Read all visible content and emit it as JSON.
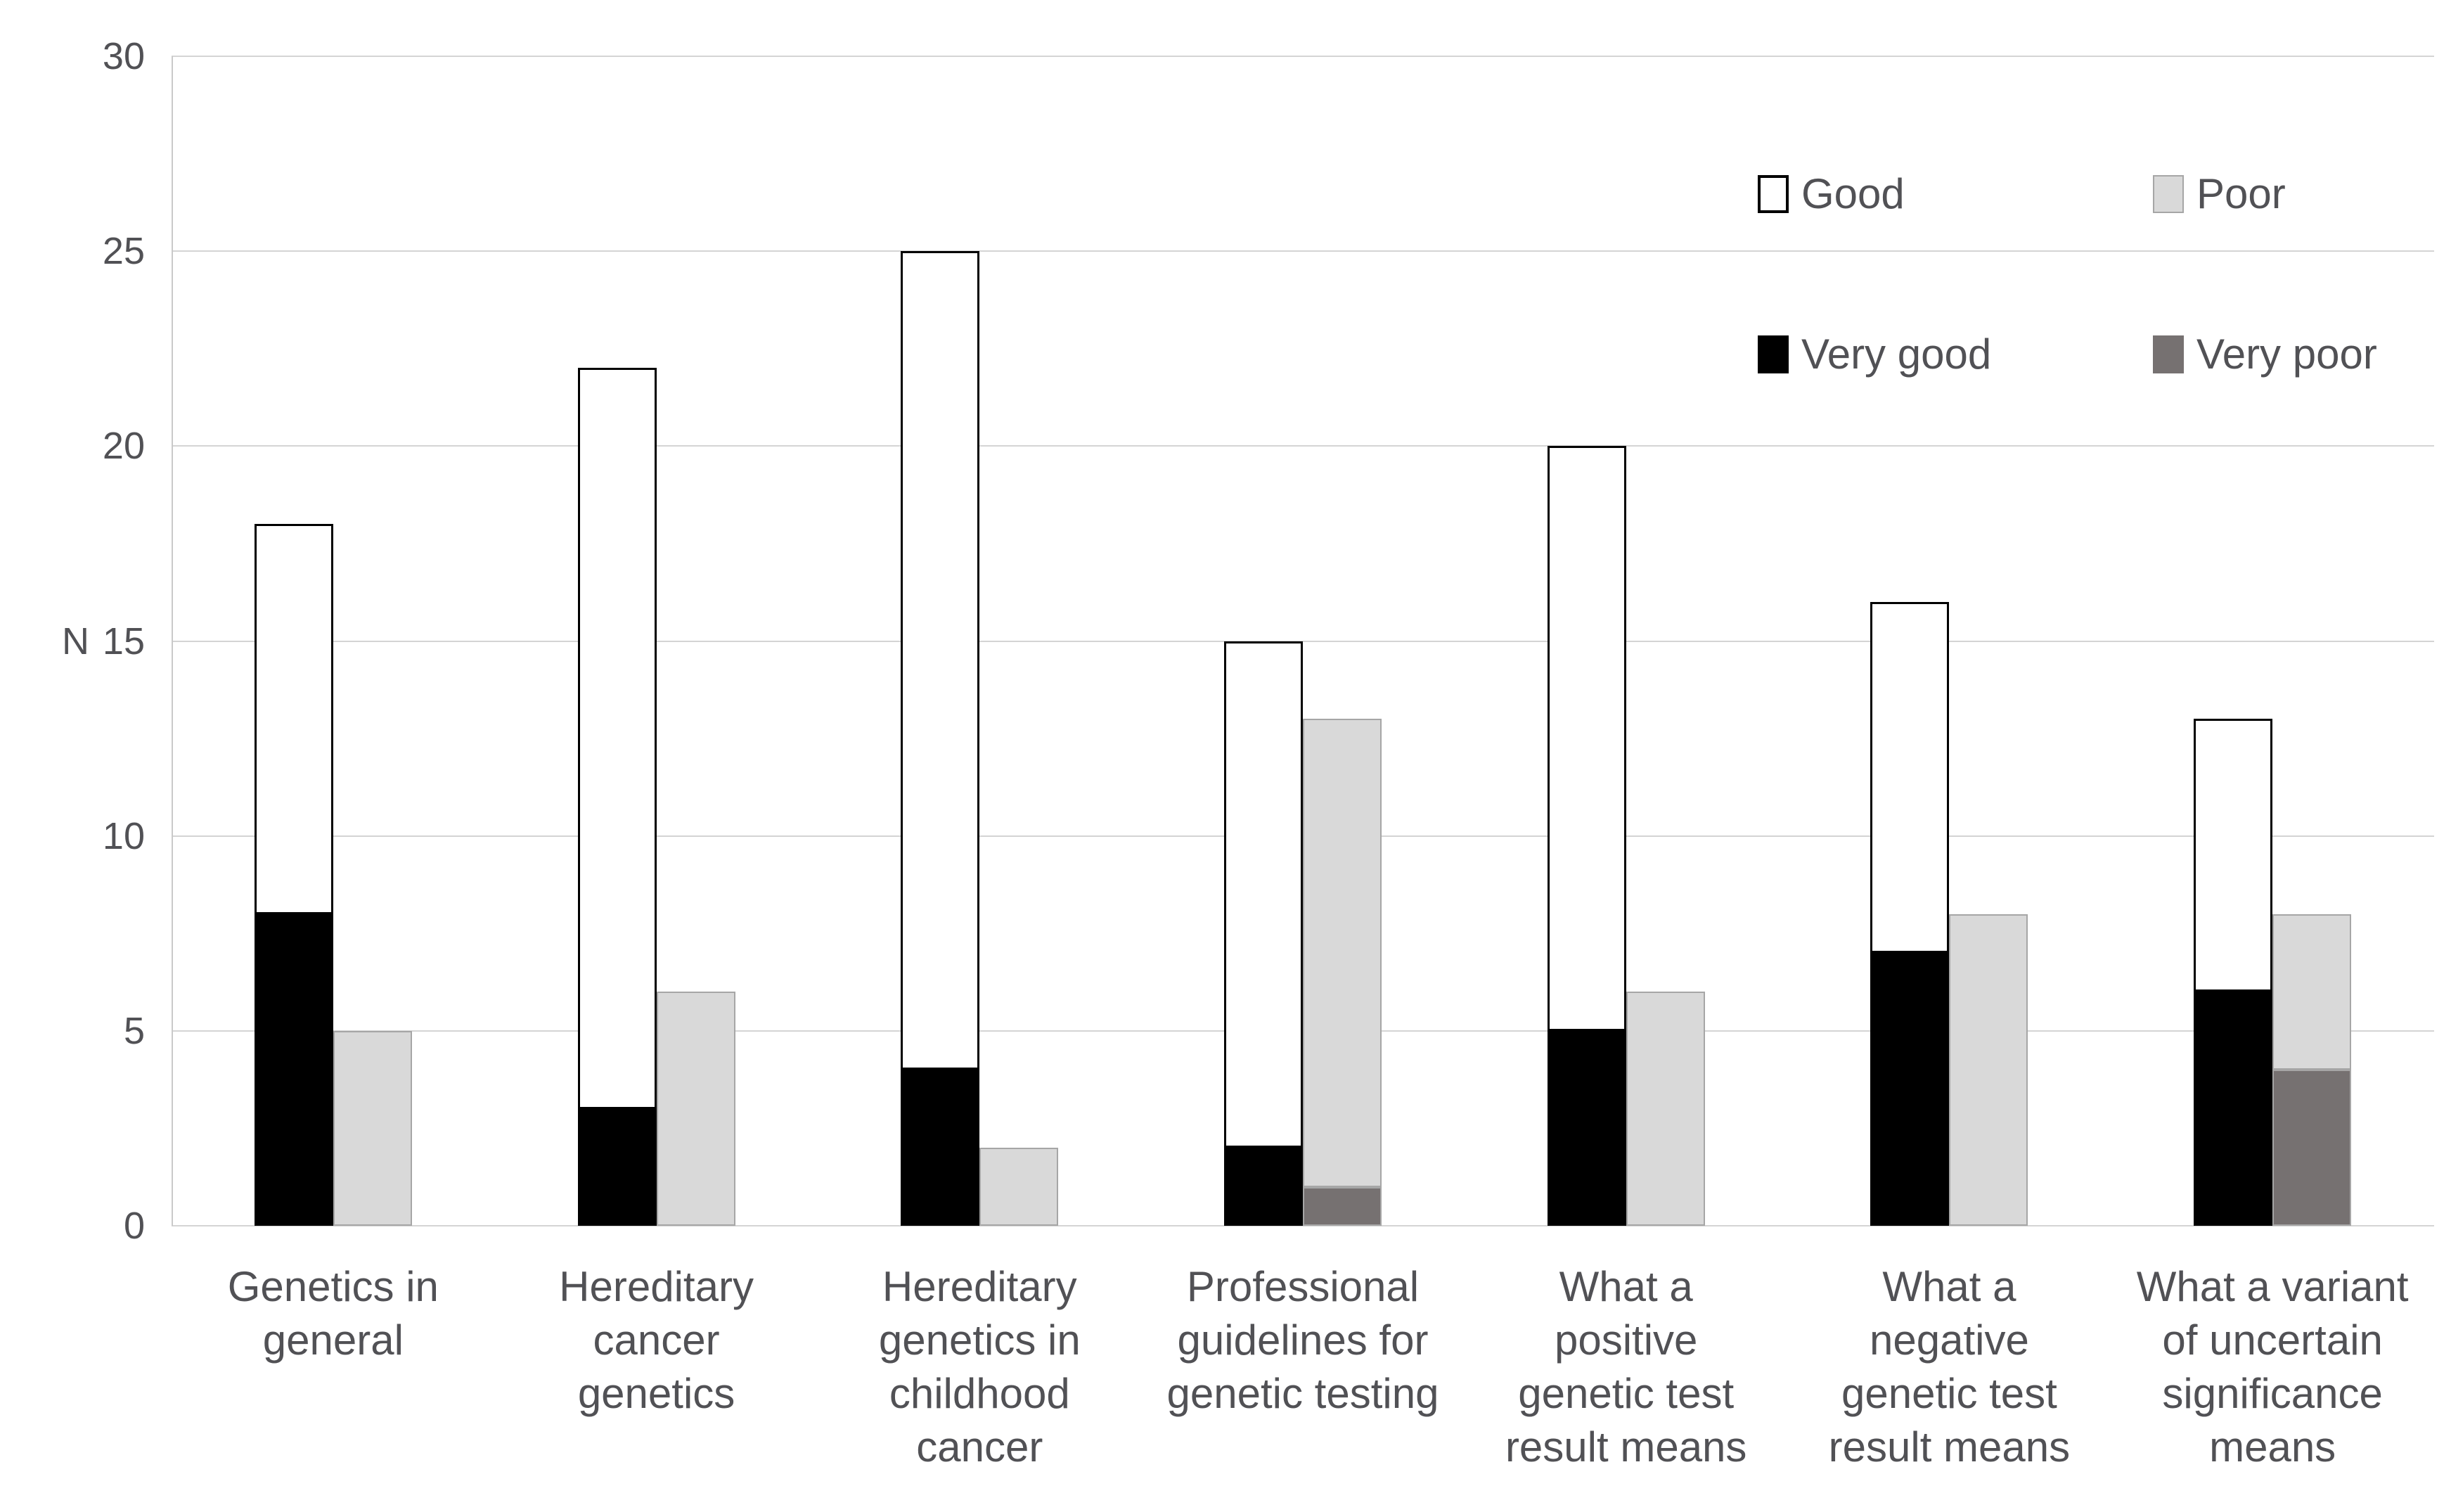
{
  "chart_data": {
    "type": "bar",
    "variant": "clustered-stacked-columns",
    "title": "",
    "xlabel": "",
    "ylabel": "N",
    "ylim": [
      0,
      30
    ],
    "yticks": [
      0,
      5,
      10,
      15,
      20,
      25,
      30
    ],
    "grid": true,
    "legend_position": "top-right",
    "categories": [
      {
        "label": "Genetics in general",
        "lines": [
          "Genetics in",
          "general"
        ]
      },
      {
        "label": "Hereditary cancer genetics",
        "lines": [
          "Hereditary",
          "cancer",
          "genetics"
        ]
      },
      {
        "label": "Hereditary genetics in childhood cancer",
        "lines": [
          "Hereditary",
          "genetics in",
          "childhood",
          "cancer"
        ]
      },
      {
        "label": "Professional guidelines for genetic testing",
        "lines": [
          "Professional",
          "guidelines for",
          "genetic testing"
        ]
      },
      {
        "label": "What a positive genetic test result means",
        "lines": [
          "What a",
          "positive",
          "genetic test",
          "result means"
        ]
      },
      {
        "label": "What a negative genetic test result means",
        "lines": [
          "What a",
          "negative",
          "genetic test",
          "result means"
        ]
      },
      {
        "label": "What a variant of uncertain significance means",
        "lines": [
          "What a variant",
          "of uncertain",
          "significance",
          "means"
        ]
      }
    ],
    "series": [
      {
        "key": "very_good",
        "name": "Very good",
        "stack": "good-bar",
        "order": 0,
        "values": [
          8,
          3,
          4,
          2,
          5,
          7,
          6
        ],
        "fill": "#000000",
        "border": "#000000"
      },
      {
        "key": "good",
        "name": "Good",
        "stack": "good-bar",
        "order": 1,
        "values": [
          10,
          19,
          21,
          13,
          15,
          9,
          7
        ],
        "fill": "#ffffff",
        "border": "#000000"
      },
      {
        "key": "very_poor",
        "name": "Very poor",
        "stack": "poor-bar",
        "order": 0,
        "values": [
          0,
          0,
          0,
          1,
          0,
          0,
          4
        ],
        "fill": "#767171",
        "border": "#a6a6a6"
      },
      {
        "key": "poor",
        "name": "Poor",
        "stack": "poor-bar",
        "order": 1,
        "values": [
          5,
          6,
          2,
          12,
          6,
          8,
          4
        ],
        "fill": "#d9d9d9",
        "border": "#a6a6a6"
      }
    ],
    "stack_totals": {
      "good-bar": [
        18,
        22,
        25,
        15,
        20,
        16,
        13
      ],
      "poor-bar": [
        5,
        6,
        2,
        13,
        6,
        8,
        8
      ]
    },
    "legend_entries": [
      {
        "key": "good",
        "label": "Good",
        "row": 0,
        "col": 0
      },
      {
        "key": "poor",
        "label": "Poor",
        "row": 0,
        "col": 1
      },
      {
        "key": "very_good",
        "label": "Very good",
        "row": 1,
        "col": 0
      },
      {
        "key": "very_poor",
        "label": "Very poor",
        "row": 1,
        "col": 1
      }
    ]
  },
  "colors": {
    "background": "#ffffff",
    "gridline": "#d4d4d4",
    "axis_line": "#c9c9c9",
    "text": "#515155"
  }
}
